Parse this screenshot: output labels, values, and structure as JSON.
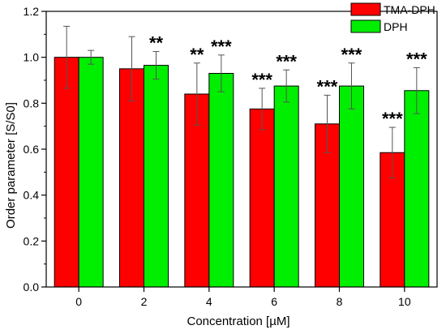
{
  "chart_data": {
    "type": "bar",
    "categories": [
      "0",
      "2",
      "4",
      "6",
      "8",
      "10"
    ],
    "xlabel": "Concentration [µM]",
    "ylabel": "Order parameter [S/S0]",
    "ylim": [
      0.0,
      1.2
    ],
    "yticks": [
      "0.0",
      "0.2",
      "0.4",
      "0.6",
      "0.8",
      "1.0",
      "1.2"
    ],
    "legend_position": "top-right",
    "series": [
      {
        "name": "TMA-DPH",
        "color": "#ff0000",
        "values": [
          1.0,
          0.95,
          0.84,
          0.775,
          0.71,
          0.585
        ],
        "errors": [
          0.135,
          0.14,
          0.135,
          0.09,
          0.125,
          0.11
        ],
        "significance": [
          "",
          "",
          "**",
          "***",
          "***",
          "***"
        ]
      },
      {
        "name": "DPH",
        "color": "#00ee00",
        "values": [
          1.0,
          0.965,
          0.93,
          0.875,
          0.875,
          0.855
        ],
        "errors": [
          0.03,
          0.06,
          0.08,
          0.07,
          0.1,
          0.1
        ],
        "significance": [
          "",
          "**",
          "***",
          "***",
          "***",
          "***"
        ]
      }
    ]
  }
}
